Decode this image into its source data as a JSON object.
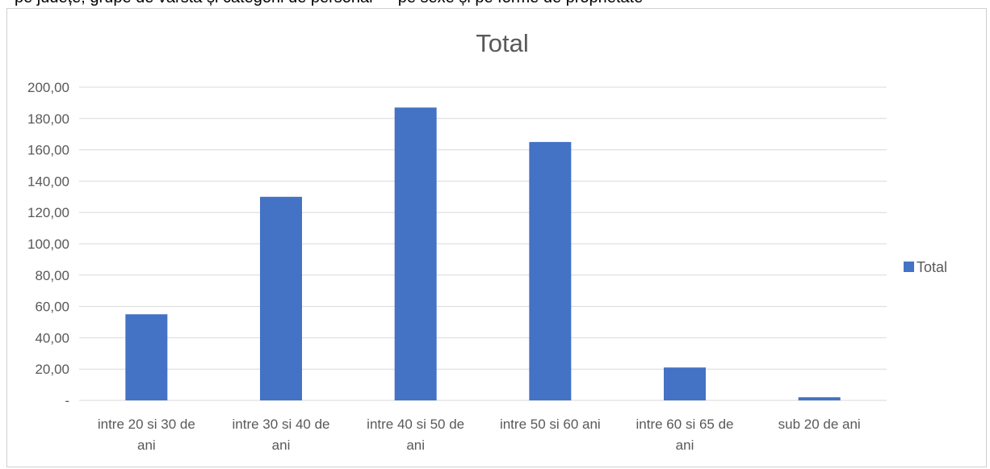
{
  "header_text": "pe județe, grupe de vârstă și categorii de personal — pe sexe și pe forme de proprietate",
  "chart_data": {
    "type": "bar",
    "title": "Total",
    "categories": [
      [
        "intre 20 si 30 de",
        "ani"
      ],
      [
        "intre 30 si 40 de",
        "ani"
      ],
      [
        "intre 40 si 50 de",
        "ani"
      ],
      [
        "intre 50 si 60 ani"
      ],
      [
        "intre 60 si 65 de",
        "ani"
      ],
      [
        "sub 20 de ani"
      ]
    ],
    "series": [
      {
        "name": "Total",
        "values": [
          55,
          130,
          187,
          165,
          21,
          2
        ],
        "color": "#4472c4"
      }
    ],
    "ylim": [
      0,
      200
    ],
    "yticks": [
      "-",
      "20,00",
      "40,00",
      "60,00",
      "80,00",
      "100,00",
      "120,00",
      "140,00",
      "160,00",
      "180,00",
      "200,00"
    ],
    "xlabel": "",
    "ylabel": "",
    "grid": true,
    "legend": "right",
    "gridline_color": "#d9d9d9"
  }
}
